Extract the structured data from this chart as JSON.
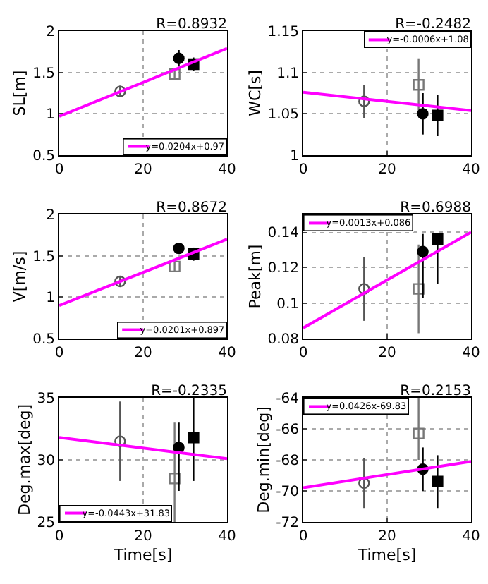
{
  "chart_data": [
    {
      "type": "scatter",
      "title": "R=0.8932",
      "ylabel": "SL[m]",
      "xlim": [
        0,
        40
      ],
      "xticks": [
        0,
        20,
        40
      ],
      "ylim": [
        0.5,
        2
      ],
      "yticks": [
        0.5,
        1,
        1.5,
        2
      ],
      "grid": true,
      "legend": "bottom right",
      "series": [
        {
          "marker": "circle-open",
          "color": "#555555",
          "x": [
            14.5
          ],
          "values": [
            1.27
          ],
          "errors": [
            0.07
          ]
        },
        {
          "marker": "square-open",
          "color": "#777777",
          "x": [
            27.5
          ],
          "values": [
            1.48
          ],
          "errors": [
            0.06
          ]
        },
        {
          "marker": "circle",
          "color": "#000000",
          "x": [
            28.5
          ],
          "values": [
            1.67
          ],
          "errors": [
            0.1
          ]
        },
        {
          "marker": "square",
          "color": "#000000",
          "x": [
            32
          ],
          "values": [
            1.6
          ],
          "errors": [
            0.08
          ]
        },
        {
          "type": "line",
          "name": "y=0.0204x+0.97",
          "color": "#ff00ff",
          "line_style": "solid",
          "x": [
            0,
            40
          ],
          "values": [
            0.97,
            1.79
          ]
        }
      ]
    },
    {
      "type": "scatter",
      "title": "R=-0.2482",
      "ylabel": "WC[s]",
      "xlim": [
        0,
        40
      ],
      "xticks": [
        0,
        20,
        40
      ],
      "ylim": [
        1,
        1.15
      ],
      "yticks": [
        1,
        1.05,
        1.1,
        1.15
      ],
      "grid": true,
      "legend": "top right",
      "series": [
        {
          "marker": "circle-open",
          "color": "#555555",
          "x": [
            14.5
          ],
          "values": [
            1.065
          ],
          "errors": [
            0.02
          ]
        },
        {
          "marker": "square-open",
          "color": "#777777",
          "x": [
            27.5
          ],
          "values": [
            1.085
          ],
          "errors": [
            0.032
          ]
        },
        {
          "marker": "circle",
          "color": "#000000",
          "x": [
            28.5
          ],
          "values": [
            1.05
          ],
          "errors": [
            0.025
          ]
        },
        {
          "marker": "square",
          "color": "#000000",
          "x": [
            32
          ],
          "values": [
            1.048
          ],
          "errors": [
            0.025
          ]
        },
        {
          "type": "line",
          "name": "y=-0.0006x+1.08",
          "color": "#ff00ff",
          "line_style": "solid",
          "x": [
            0,
            40
          ],
          "values": [
            1.076,
            1.054
          ]
        }
      ]
    },
    {
      "type": "scatter",
      "title": "R=0.8672",
      "ylabel": "V[m/s]",
      "xlim": [
        0,
        40
      ],
      "xticks": [
        0,
        20,
        40
      ],
      "ylim": [
        0.5,
        2
      ],
      "yticks": [
        0.5,
        1,
        1.5,
        2
      ],
      "grid": true,
      "legend": "bottom right",
      "series": [
        {
          "marker": "circle-open",
          "color": "#555555",
          "x": [
            14.5
          ],
          "values": [
            1.19
          ],
          "errors": [
            0.06
          ]
        },
        {
          "marker": "square-open",
          "color": "#777777",
          "x": [
            27.5
          ],
          "values": [
            1.37
          ],
          "errors": [
            0.06
          ]
        },
        {
          "marker": "circle",
          "color": "#000000",
          "x": [
            28.5
          ],
          "values": [
            1.59
          ],
          "errors": [
            0.06
          ]
        },
        {
          "marker": "square",
          "color": "#000000",
          "x": [
            32
          ],
          "values": [
            1.52
          ],
          "errors": [
            0.08
          ]
        },
        {
          "type": "line",
          "name": "y=0.0201x+0.897",
          "color": "#ff00ff",
          "line_style": "solid",
          "x": [
            0,
            40
          ],
          "values": [
            0.9,
            1.7
          ]
        }
      ]
    },
    {
      "type": "scatter",
      "title": "R=0.6988",
      "ylabel": "Peak[m]",
      "xlim": [
        0,
        40
      ],
      "xticks": [
        0,
        20,
        40
      ],
      "ylim": [
        0.08,
        0.15
      ],
      "yticks": [
        0.08,
        0.1,
        0.12,
        0.14
      ],
      "grid": true,
      "legend": "top left",
      "series": [
        {
          "marker": "circle-open",
          "color": "#555555",
          "x": [
            14.5
          ],
          "values": [
            0.108
          ],
          "errors": [
            0.018
          ]
        },
        {
          "marker": "square-open",
          "color": "#777777",
          "x": [
            27.5
          ],
          "values": [
            0.108
          ],
          "errors": [
            0.025
          ]
        },
        {
          "marker": "circle",
          "color": "#000000",
          "x": [
            28.5
          ],
          "values": [
            0.129
          ],
          "errors": [
            [
              0.103,
              0.139
            ]
          ]
        },
        {
          "marker": "square",
          "color": "#000000",
          "x": [
            32
          ],
          "values": [
            0.136
          ],
          "errors": [
            [
              0.111,
              0.139
            ]
          ]
        },
        {
          "type": "line",
          "name": "y=0.0013x+0.086",
          "color": "#ff00ff",
          "line_style": "solid",
          "x": [
            0,
            40
          ],
          "values": [
            0.086,
            0.14
          ]
        }
      ]
    },
    {
      "type": "scatter",
      "title": "R=-0.2335",
      "ylabel": "Deg.max[deg]",
      "xlabel": "Time[s]",
      "xlim": [
        0,
        40
      ],
      "xticks": [
        0,
        20,
        40
      ],
      "ylim": [
        25,
        35
      ],
      "yticks": [
        25,
        30,
        35
      ],
      "grid": true,
      "legend": "bottom left",
      "series": [
        {
          "marker": "circle-open",
          "color": "#555555",
          "x": [
            14.5
          ],
          "values": [
            31.5
          ],
          "errors": [
            3.2
          ]
        },
        {
          "marker": "square-open",
          "color": "#777777",
          "x": [
            27.5
          ],
          "values": [
            28.5
          ],
          "errors": [
            [
              25,
              33
            ]
          ]
        },
        {
          "marker": "circle",
          "color": "#000000",
          "x": [
            28.5
          ],
          "values": [
            31
          ],
          "errors": [
            [
              27.5,
              33
            ]
          ]
        },
        {
          "marker": "square",
          "color": "#000000",
          "x": [
            32
          ],
          "values": [
            31.8
          ],
          "errors": [
            [
              28.3,
              35
            ]
          ]
        },
        {
          "type": "line",
          "name": "y=-0.0443x+31.83",
          "color": "#ff00ff",
          "line_style": "solid",
          "x": [
            0,
            40
          ],
          "values": [
            31.8,
            30.1
          ]
        }
      ]
    },
    {
      "type": "scatter",
      "title": "R=0.2153",
      "ylabel": "Deg.min[deg]",
      "xlabel": "Time[s]",
      "xlim": [
        0,
        40
      ],
      "xticks": [
        0,
        20,
        40
      ],
      "ylim": [
        -72,
        -64
      ],
      "yticks": [
        -72,
        -70,
        -68,
        -66,
        -64
      ],
      "grid": true,
      "legend": "top left",
      "series": [
        {
          "marker": "circle-open",
          "color": "#555555",
          "x": [
            14.5
          ],
          "values": [
            -69.5
          ],
          "errors": [
            1.6
          ]
        },
        {
          "marker": "square-open",
          "color": "#777777",
          "x": [
            27.5
          ],
          "values": [
            -66.3
          ],
          "errors": [
            [
              -68,
              -64
            ]
          ]
        },
        {
          "marker": "circle",
          "color": "#000000",
          "x": [
            28.5
          ],
          "values": [
            -68.6
          ],
          "errors": [
            1.4
          ]
        },
        {
          "marker": "square",
          "color": "#000000",
          "x": [
            32
          ],
          "values": [
            -69.4
          ],
          "errors": [
            1.7
          ]
        },
        {
          "type": "line",
          "name": "y=0.0426x-69.83",
          "color": "#ff00ff",
          "line_style": "solid",
          "x": [
            0,
            40
          ],
          "values": [
            -69.8,
            -68.1
          ]
        }
      ]
    }
  ]
}
